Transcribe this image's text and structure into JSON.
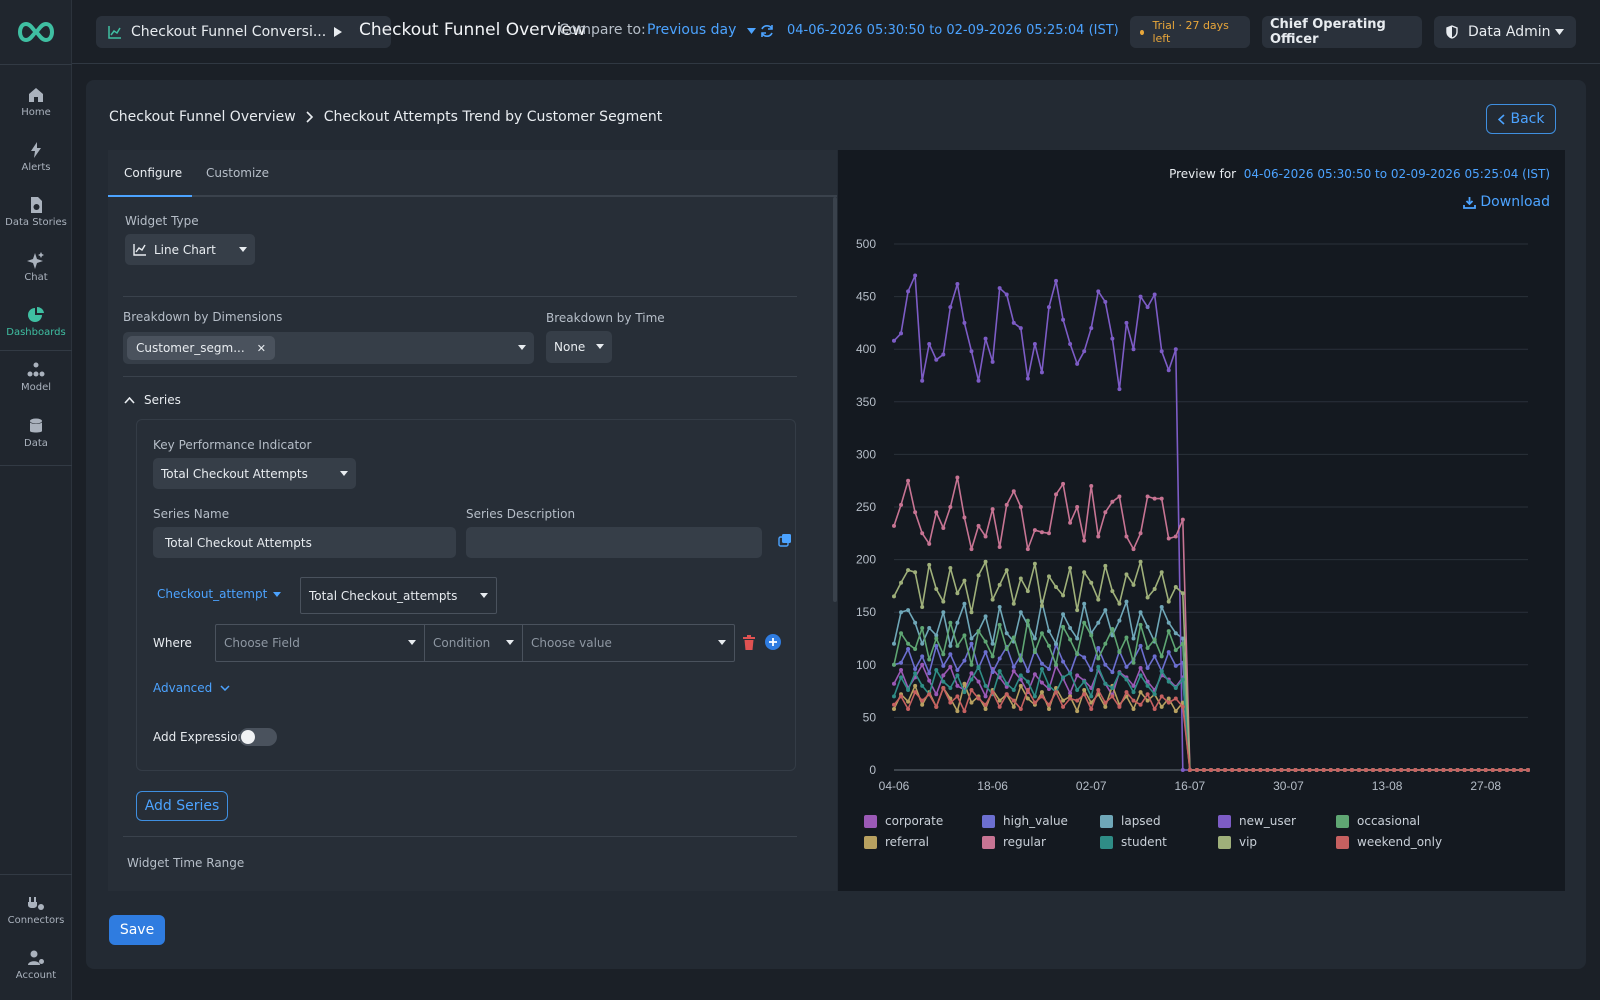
{
  "sidebar": {
    "items": [
      {
        "label": "Home",
        "icon": "home-icon"
      },
      {
        "label": "Alerts",
        "icon": "bolt-icon"
      },
      {
        "label": "Data Stories",
        "icon": "document-icon"
      },
      {
        "label": "Chat",
        "icon": "sparkle-icon"
      },
      {
        "label": "Dashboards",
        "icon": "pie-chart-icon",
        "active": true
      },
      {
        "label": "Model",
        "icon": "model-icon"
      },
      {
        "label": "Data",
        "icon": "database-icon"
      },
      {
        "label": "Connectors",
        "icon": "plug-icon"
      },
      {
        "label": "Account",
        "icon": "user-gear-icon"
      }
    ]
  },
  "header": {
    "dashboard_chip": "Checkout Funnel Conversi...",
    "title": "Checkout Funnel Overview",
    "compare_label": "Compare to:",
    "compare_value": "Previous day",
    "date_range": "04-06-2026 05:30:50 to 02-09-2026 05:25:04 (IST)",
    "trial": "Trial · 27 days left",
    "role": "Chief Operating Officer",
    "user": "Data Admin"
  },
  "breadcrumb": {
    "parent": "Checkout Funnel Overview",
    "current": "Checkout Attempts Trend by Customer Segment"
  },
  "back_label": "Back",
  "tabs": [
    "Configure",
    "Customize"
  ],
  "config": {
    "widget_type_label": "Widget Type",
    "widget_type": "Line Chart",
    "breakdown_dims_label": "Breakdown by Dimensions",
    "breakdown_dim_chip": "Customer_segm...",
    "breakdown_time_label": "Breakdown by Time",
    "breakdown_time": "None",
    "series_header": "Series",
    "kpi_label": "Key Performance Indicator",
    "kpi_value": "Total Checkout Attempts",
    "series_name_label": "Series Name",
    "series_name": "Total Checkout Attempts",
    "series_desc_label": "Series Description",
    "series_desc": "",
    "metric_source": "Checkout_attempt",
    "metric_agg": "Total Checkout_attempts",
    "where_label": "Where",
    "field_placeholder": "Choose Field",
    "condition_placeholder": "Condition",
    "value_placeholder": "Choose value",
    "advanced_label": "Advanced",
    "add_expression_label": "Add Expression",
    "add_series_label": "Add Series",
    "widget_time_range_label": "Widget Time Range",
    "save_label": "Save"
  },
  "preview": {
    "label": "Preview for",
    "date_range": "04-06-2026 05:30:50 to 02-09-2026 05:25:04 (IST)",
    "download_label": "Download"
  },
  "colors": {
    "accent": "#4ca3ff",
    "brand": "#3fbfa2",
    "trial": "#e8a63a"
  },
  "chart_data": {
    "type": "line",
    "ylim": [
      0,
      500
    ],
    "yticks": [
      0,
      50,
      100,
      150,
      200,
      250,
      300,
      350,
      400,
      450,
      500
    ],
    "xtick_labels": [
      "04-06",
      "18-06",
      "02-07",
      "16-07",
      "30-07",
      "13-08",
      "27-08"
    ],
    "x_start": "04-06",
    "x_points": 91,
    "active_points": 42,
    "series": [
      {
        "name": "corporate",
        "color": "#9b59b6",
        "values": [
          82,
          95,
          78,
          88,
          100,
          85,
          72,
          90,
          98,
          80,
          76,
          92,
          84,
          70,
          96,
          88,
          79,
          94,
          86,
          74,
          91,
          83,
          77,
          99,
          87,
          73,
          90,
          85,
          78,
          95,
          82,
          71,
          93,
          88,
          80,
          97,
          84,
          76,
          90,
          86,
          79,
          88
        ]
      },
      {
        "name": "high_value",
        "color": "#6c6fd0",
        "values": [
          100,
          102,
          115,
          96,
          108,
          92,
          118,
          99,
          110,
          95,
          104,
          120,
          97,
          112,
          93,
          106,
          117,
          98,
          109,
          94,
          114,
          101,
          96,
          119,
          103,
          92,
          111,
          107,
          95,
          116,
          100,
          93,
          113,
          98,
          105,
          118,
          97,
          108,
          94,
          112,
          99,
          102
        ]
      },
      {
        "name": "lapsed",
        "color": "#6fa7b8",
        "values": [
          120,
          150,
          152,
          140,
          120,
          135,
          128,
          150,
          118,
          140,
          158,
          125,
          132,
          146,
          120,
          155,
          130,
          122,
          150,
          138,
          125,
          160,
          132,
          120,
          148,
          135,
          125,
          158,
          130,
          140,
          152,
          128,
          142,
          160,
          125,
          150,
          136,
          122,
          155,
          140,
          130,
          125
        ]
      },
      {
        "name": "new_user",
        "color": "#7d5cc6",
        "values": [
          408,
          415,
          455,
          470,
          370,
          405,
          390,
          395,
          440,
          462,
          425,
          398,
          370,
          410,
          388,
          458,
          452,
          425,
          420,
          372,
          405,
          378,
          440,
          465,
          428,
          405,
          386,
          398,
          420,
          455,
          445,
          410,
          362,
          425,
          400,
          450,
          440,
          452,
          398,
          380,
          400,
          0
        ]
      },
      {
        "name": "occasional",
        "color": "#5fa673",
        "values": [
          100,
          130,
          120,
          115,
          135,
          105,
          125,
          110,
          140,
          118,
          128,
          100,
          132,
          122,
          108,
          138,
          115,
          126,
          104,
          142,
          112,
          130,
          118,
          100,
          136,
          124,
          110,
          140,
          128,
          106,
          120,
          134,
          112,
          126,
          102,
          138,
          116,
          124,
          108,
          132,
          114,
          120
        ]
      },
      {
        "name": "referral",
        "color": "#b8a160",
        "values": [
          58,
          72,
          65,
          80,
          62,
          74,
          60,
          78,
          68,
          56,
          82,
          64,
          70,
          58,
          76,
          66,
          72,
          60,
          80,
          68,
          62,
          74,
          58,
          78,
          66,
          70,
          56,
          76,
          64,
          72,
          60,
          80,
          62,
          70,
          58,
          74,
          66,
          72,
          60,
          68,
          56,
          64
        ]
      },
      {
        "name": "regular",
        "color": "#c77493",
        "values": [
          232,
          252,
          275,
          245,
          225,
          215,
          245,
          230,
          250,
          278,
          240,
          210,
          232,
          222,
          248,
          212,
          252,
          265,
          250,
          210,
          228,
          226,
          225,
          262,
          272,
          235,
          250,
          218,
          270,
          222,
          245,
          255,
          260,
          222,
          210,
          225,
          260,
          258,
          258,
          220,
          222,
          238
        ]
      },
      {
        "name": "student",
        "color": "#2f8d86",
        "values": [
          70,
          88,
          76,
          92,
          80,
          72,
          95,
          84,
          78,
          90,
          74,
          86,
          98,
          80,
          72,
          94,
          82,
          76,
          90,
          84,
          70,
          96,
          80,
          74,
          88,
          92,
          76,
          84,
          70,
          98,
          82,
          78,
          92,
          86,
          74,
          90,
          80,
          72,
          94,
          84,
          78,
          86
        ]
      },
      {
        "name": "vip",
        "color": "#9fb07a",
        "values": [
          165,
          178,
          190,
          188,
          155,
          195,
          172,
          160,
          192,
          168,
          180,
          150,
          185,
          198,
          162,
          176,
          190,
          158,
          182,
          170,
          196,
          156,
          184,
          174,
          166,
          192,
          152,
          188,
          178,
          162,
          194,
          170,
          158,
          186,
          176,
          198,
          164,
          172,
          188,
          160,
          174,
          168
        ]
      },
      {
        "name": "weekend_only",
        "color": "#c66060",
        "values": [
          62,
          70,
          58,
          74,
          66,
          72,
          60,
          78,
          64,
          70,
          56,
          76,
          68,
          62,
          74,
          60,
          72,
          66,
          58,
          76,
          64,
          70,
          62,
          74,
          60,
          68,
          66,
          72,
          58,
          76,
          64,
          70,
          60,
          74,
          66,
          62,
          72,
          58,
          70,
          64,
          68,
          60
        ]
      }
    ]
  }
}
